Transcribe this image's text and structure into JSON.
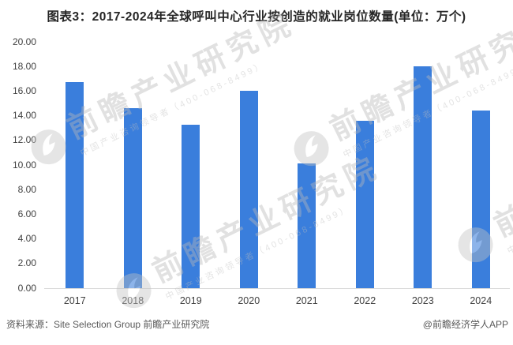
{
  "title": "图表3：2017-2024年全球呼叫中心行业按创造的就业岗位数量(单位：万个)",
  "chart_data": {
    "type": "bar",
    "title": "图表3：2017-2024年全球呼叫中心行业按创造的就业岗位数量(单位：万个)",
    "unit": "万个",
    "categories": [
      "2017",
      "2018",
      "2019",
      "2020",
      "2021",
      "2022",
      "2023",
      "2024"
    ],
    "values": [
      16.7,
      14.6,
      13.3,
      16.0,
      10.1,
      13.6,
      18.0,
      14.4
    ],
    "xlabel": "",
    "ylabel": "",
    "ylim": [
      0,
      20
    ],
    "yticks": [
      0,
      2,
      4,
      6,
      8,
      10,
      12,
      14,
      16,
      18,
      20
    ],
    "ytick_labels": [
      "0.00",
      "2.00",
      "4.00",
      "6.00",
      "8.00",
      "10.00",
      "12.00",
      "14.00",
      "16.00",
      "18.00",
      "20.00"
    ],
    "grid": false,
    "legend": false,
    "bar_color": "#3A7EDC"
  },
  "colors": {
    "bar": "#3A7EDC",
    "axis_line": "#D9D9D9",
    "axis_text": "#404040",
    "title_text": "#262626",
    "footer_text": "#595959",
    "watermark": "#BDBDBD"
  },
  "footer": {
    "source": "资料来源：Site Selection Group 前瞻产业研究院",
    "credit": "@前瞻经济学人APP"
  },
  "watermark": {
    "logo": "qianzhan-logo",
    "big_text": "前瞻产业研究院",
    "small_text": "中国产业咨询领导者（400-068-8499）"
  }
}
